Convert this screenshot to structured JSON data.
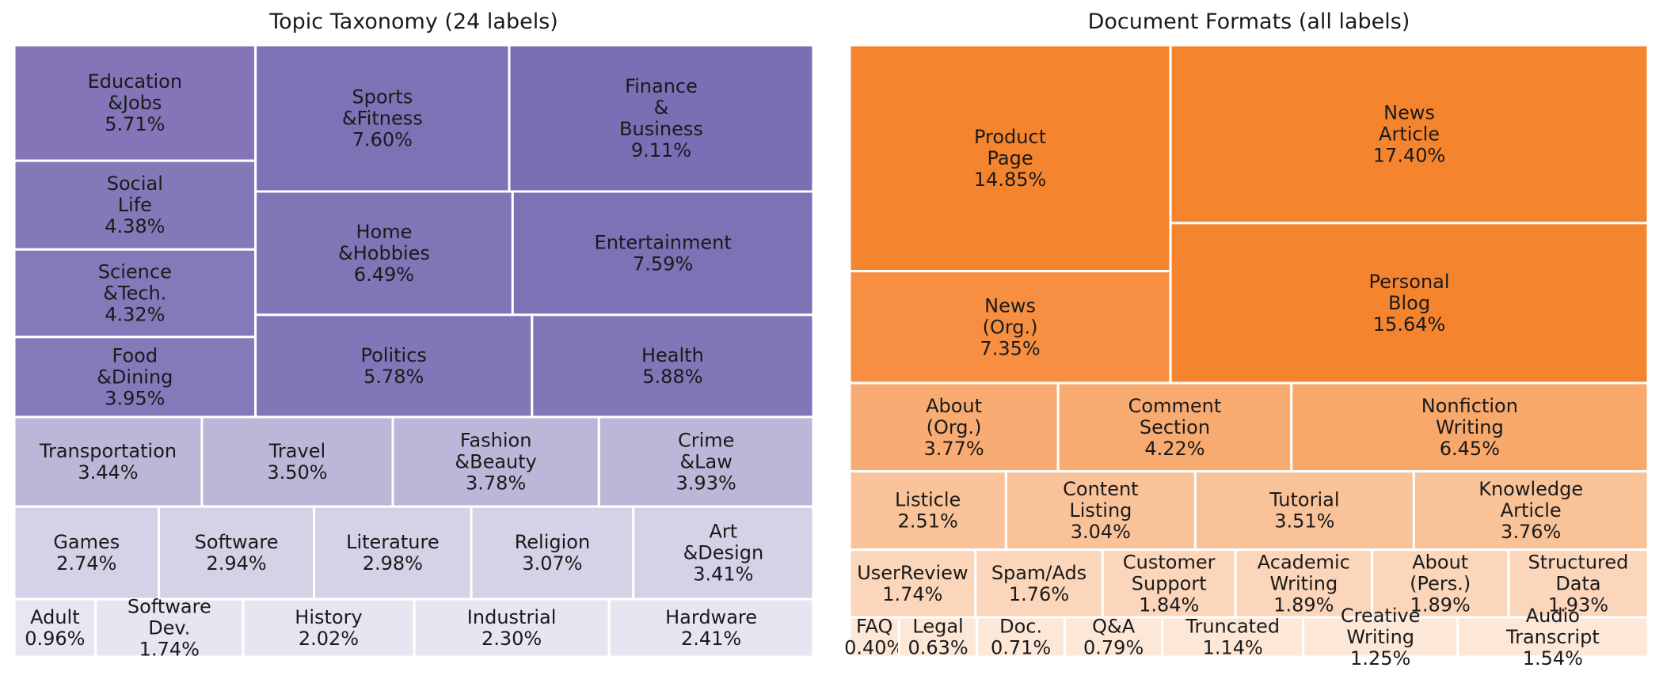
{
  "chart_data": [
    {
      "type": "treemap",
      "title": "Topic Taxonomy (24 labels)",
      "base_color": "#7a6cb3",
      "items": [
        {
          "label": "Education\n&Jobs",
          "value": 5.71,
          "text": "5.71%"
        },
        {
          "label": "Social\nLife",
          "value": 4.38,
          "text": "4.38%"
        },
        {
          "label": "Science\n&Tech.",
          "value": 4.32,
          "text": "4.32%"
        },
        {
          "label": "Food\n&Dining",
          "value": 3.95,
          "text": "3.95%"
        },
        {
          "label": "Sports\n&Fitness",
          "value": 7.6,
          "text": "7.60%"
        },
        {
          "label": "Finance\n&\nBusiness",
          "value": 9.11,
          "text": "9.11%"
        },
        {
          "label": "Home\n&Hobbies",
          "value": 6.49,
          "text": "6.49%"
        },
        {
          "label": "Entertainment",
          "value": 7.59,
          "text": "7.59%"
        },
        {
          "label": "Politics",
          "value": 5.78,
          "text": "5.78%"
        },
        {
          "label": "Health",
          "value": 5.88,
          "text": "5.88%"
        },
        {
          "label": "Transportation",
          "value": 3.44,
          "text": "3.44%"
        },
        {
          "label": "Travel",
          "value": 3.5,
          "text": "3.50%"
        },
        {
          "label": "Fashion\n&Beauty",
          "value": 3.78,
          "text": "3.78%"
        },
        {
          "label": "Crime\n&Law",
          "value": 3.93,
          "text": "3.93%"
        },
        {
          "label": "Games",
          "value": 2.74,
          "text": "2.74%"
        },
        {
          "label": "Software",
          "value": 2.94,
          "text": "2.94%"
        },
        {
          "label": "Literature",
          "value": 2.98,
          "text": "2.98%"
        },
        {
          "label": "Religion",
          "value": 3.07,
          "text": "3.07%"
        },
        {
          "label": "Art\n&Design",
          "value": 3.41,
          "text": "3.41%"
        },
        {
          "label": "Adult",
          "value": 0.96,
          "text": "0.96%"
        },
        {
          "label": "Software\nDev.",
          "value": 1.74,
          "text": "1.74%"
        },
        {
          "label": "History",
          "value": 2.02,
          "text": "2.02%"
        },
        {
          "label": "Industrial",
          "value": 2.3,
          "text": "2.30%"
        },
        {
          "label": "Hardware",
          "value": 2.41,
          "text": "2.41%"
        }
      ]
    },
    {
      "type": "treemap",
      "title": "Document Formats (all labels)",
      "base_color": "#f5842f",
      "items": [
        {
          "label": "Product\nPage",
          "value": 14.85,
          "text": "14.85%"
        },
        {
          "label": "News\n(Org.)",
          "value": 7.35,
          "text": "7.35%"
        },
        {
          "label": "News\nArticle",
          "value": 17.4,
          "text": "17.40%"
        },
        {
          "label": "Personal\nBlog",
          "value": 15.64,
          "text": "15.64%"
        },
        {
          "label": "About\n(Org.)",
          "value": 3.77,
          "text": "3.77%"
        },
        {
          "label": "Comment\nSection",
          "value": 4.22,
          "text": "4.22%"
        },
        {
          "label": "Nonfiction\nWriting",
          "value": 6.45,
          "text": "6.45%"
        },
        {
          "label": "Listicle",
          "value": 2.51,
          "text": "2.51%"
        },
        {
          "label": "Content\nListing",
          "value": 3.04,
          "text": "3.04%"
        },
        {
          "label": "Tutorial",
          "value": 3.51,
          "text": "3.51%"
        },
        {
          "label": "Knowledge\nArticle",
          "value": 3.76,
          "text": "3.76%"
        },
        {
          "label": "UserReview",
          "value": 1.74,
          "text": "1.74%"
        },
        {
          "label": "Spam/Ads",
          "value": 1.76,
          "text": "1.76%"
        },
        {
          "label": "Customer\nSupport",
          "value": 1.84,
          "text": "1.84%"
        },
        {
          "label": "Academic\nWriting",
          "value": 1.89,
          "text": "1.89%"
        },
        {
          "label": "About\n(Pers.)",
          "value": 1.89,
          "text": "1.89%"
        },
        {
          "label": "Structured\nData",
          "value": 1.93,
          "text": "1.93%"
        },
        {
          "label": "FAQ",
          "value": 0.4,
          "text": "0.40%"
        },
        {
          "label": "Legal",
          "value": 0.63,
          "text": "0.63%"
        },
        {
          "label": "Doc.",
          "value": 0.71,
          "text": "0.71%"
        },
        {
          "label": "Q&A",
          "value": 0.79,
          "text": "0.79%"
        },
        {
          "label": "Truncated",
          "value": 1.14,
          "text": "1.14%"
        },
        {
          "label": "Creative\nWriting",
          "value": 1.25,
          "text": "1.25%"
        },
        {
          "label": "Audio\nTranscript",
          "value": 1.54,
          "text": "1.54%"
        }
      ]
    }
  ]
}
